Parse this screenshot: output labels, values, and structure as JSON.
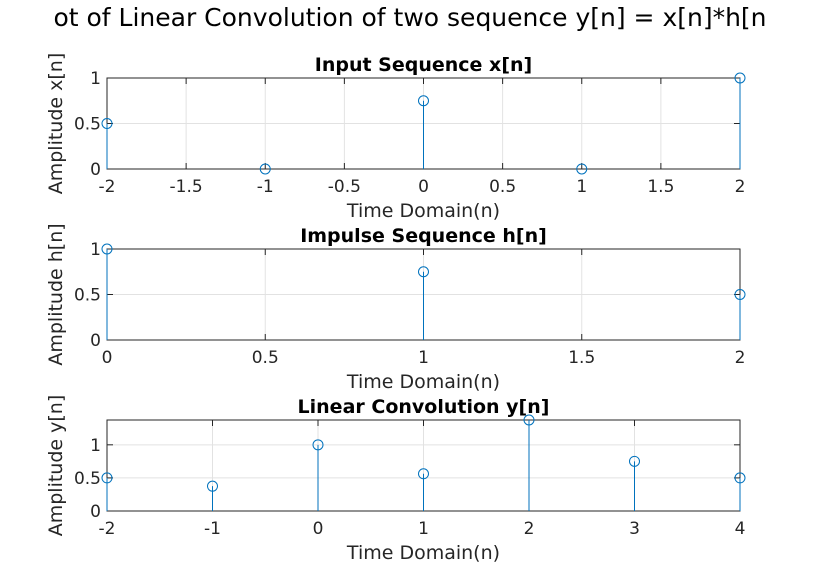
{
  "figure": {
    "suptitle": "ot of Linear Convolution of two sequence y[n] = x[n]*h[n",
    "stem_color": "#0072BD"
  },
  "chart_data": [
    {
      "type": "stem",
      "title": "Input Sequence x[n]",
      "xlabel": "Time Domain(n)",
      "ylabel": "Amplitude x[n]",
      "xlim": [
        -2,
        2
      ],
      "ylim": [
        0,
        1
      ],
      "xticks": [
        -2,
        -1.5,
        -1,
        -0.5,
        0,
        0.5,
        1,
        1.5,
        2
      ],
      "xtick_labels": [
        "-2",
        "-1.5",
        "-1",
        "-0.5",
        "0",
        "0.5",
        "1",
        "1.5",
        "2"
      ],
      "yticks": [
        0,
        0.5,
        1
      ],
      "ytick_labels": [
        "0",
        "0.5",
        "1"
      ],
      "grid": true,
      "x": [
        -2,
        -1,
        0,
        1,
        2
      ],
      "values": [
        0.5,
        0,
        0.75,
        0,
        1
      ]
    },
    {
      "type": "stem",
      "title": "Impulse Sequence h[n]",
      "xlabel": "Time Domain(n)",
      "ylabel": "Amplitude h[n]",
      "xlim": [
        0,
        2
      ],
      "ylim": [
        0,
        1
      ],
      "xticks": [
        0,
        0.5,
        1,
        1.5,
        2
      ],
      "xtick_labels": [
        "0",
        "0.5",
        "1",
        "1.5",
        "2"
      ],
      "yticks": [
        0,
        0.5,
        1
      ],
      "ytick_labels": [
        "0",
        "0.5",
        "1"
      ],
      "grid": true,
      "x": [
        0,
        1,
        2
      ],
      "values": [
        1,
        0.75,
        0.5
      ]
    },
    {
      "type": "stem",
      "title": "Linear Convolution y[n]",
      "xlabel": "Time Domain(n)",
      "ylabel": "Amplitude y[n]",
      "xlim": [
        -2,
        4
      ],
      "ylim": [
        0,
        1.375
      ],
      "xticks": [
        -2,
        -1,
        0,
        1,
        2,
        3,
        4
      ],
      "xtick_labels": [
        "-2",
        "-1",
        "0",
        "1",
        "2",
        "3",
        "4"
      ],
      "yticks": [
        0,
        0.5,
        1
      ],
      "ytick_labels": [
        "0",
        "0.5",
        "1"
      ],
      "grid": true,
      "x": [
        -2,
        -1,
        0,
        1,
        2,
        3,
        4
      ],
      "values": [
        0.5,
        0.375,
        1,
        0.5625,
        1.375,
        0.75,
        0.5
      ]
    }
  ]
}
